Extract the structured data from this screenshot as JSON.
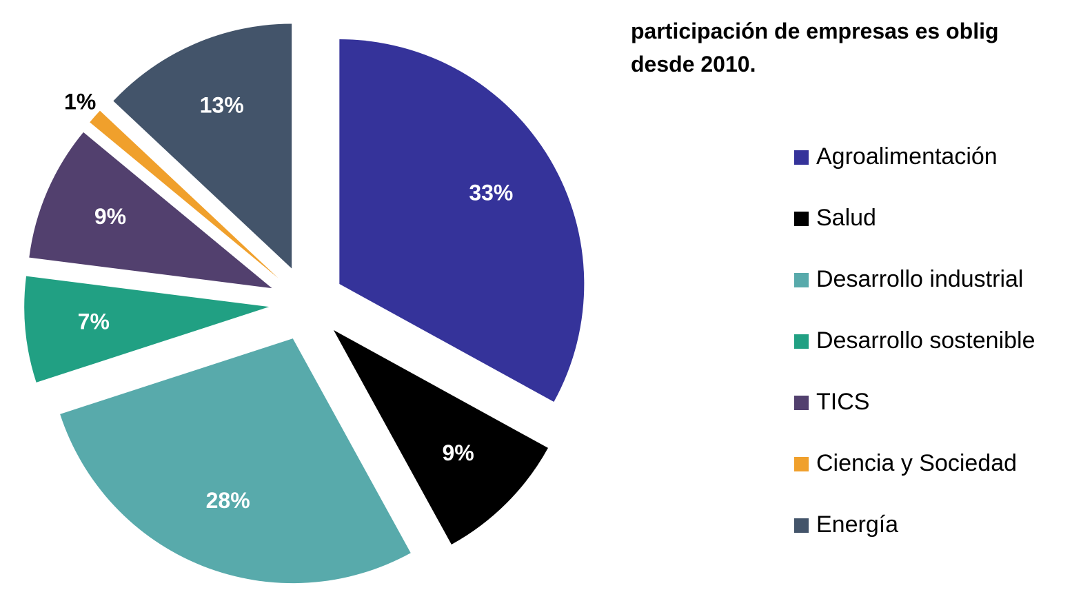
{
  "chart_data": {
    "type": "pie",
    "title": [
      "participación de empresas es oblig",
      "desde 2010."
    ],
    "categories": [
      "Agroalimentación",
      "Salud",
      "Desarrollo industrial",
      "Desarrollo sostenible",
      "TICS",
      "Ciencia y Sociedad",
      "Energía"
    ],
    "values": [
      33,
      9,
      28,
      7,
      9,
      1,
      13
    ],
    "value_labels": [
      "33%",
      "9%",
      "28%",
      "7%",
      "9%",
      "1%",
      "13%"
    ],
    "colors": [
      "#35339a",
      "#000000",
      "#58aaab",
      "#21a083",
      "#52406e",
      "#f0a02c",
      "#43546a"
    ],
    "legend": "right"
  }
}
